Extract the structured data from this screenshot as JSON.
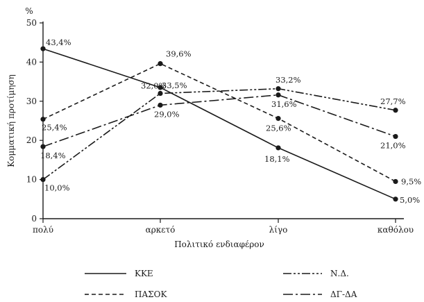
{
  "chart_data": {
    "type": "line",
    "title": "",
    "xlabel": "Πολιτικό ενδιαφέρον",
    "ylabel": "Κομματική προτίμηση",
    "yunit": "%",
    "categories": [
      "πολύ",
      "αρκετό",
      "λίγο",
      "καθόλου"
    ],
    "ylim": [
      0,
      50
    ],
    "yticks": [
      "0",
      "10",
      "20",
      "30",
      "40",
      "50"
    ],
    "grid": false,
    "legend_position": "bottom",
    "series": [
      {
        "name": "ΚΚΕ",
        "line_style": "solid",
        "values": [
          43.4,
          33.5,
          18.1,
          5.0
        ],
        "labels": [
          "43,4%",
          "33,5%",
          "18,1%",
          "5,0%"
        ]
      },
      {
        "name": "ΠΑΣΟΚ",
        "line_style": "dashed",
        "values": [
          25.4,
          39.6,
          25.6,
          9.5
        ],
        "labels": [
          "25,4%",
          "39,6%",
          "25,6%",
          "9,5%"
        ]
      },
      {
        "name": "Ν.Δ.",
        "line_style": "dash-dot-dot",
        "values": [
          10.0,
          32.0,
          33.2,
          27.7
        ],
        "labels": [
          "10,0%",
          "32,0%",
          "33,2%",
          "27,7%"
        ]
      },
      {
        "name": "ΔΓ-ΔΑ",
        "line_style": "dash-dot",
        "values": [
          18.4,
          29.0,
          31.6,
          21.0
        ],
        "labels": [
          "18,4%",
          "29,0%",
          "31,6%",
          "21,0%"
        ]
      }
    ]
  },
  "colors": {
    "ink": "#1a1a1a",
    "background": "#ffffff"
  }
}
